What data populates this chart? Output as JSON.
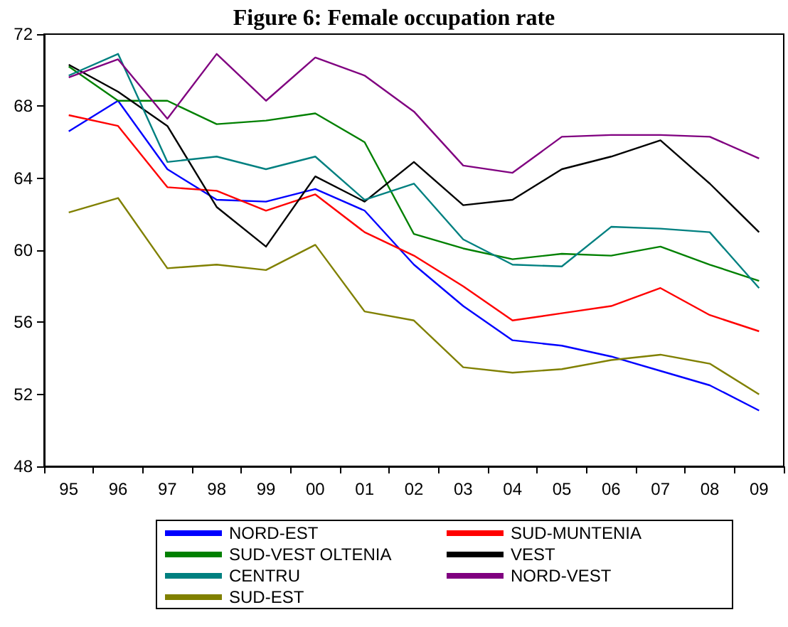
{
  "chart_data": {
    "type": "line",
    "title": "Figure 6: Female occupation rate",
    "categories": [
      "95",
      "96",
      "97",
      "98",
      "99",
      "00",
      "01",
      "02",
      "03",
      "04",
      "05",
      "06",
      "07",
      "08",
      "09"
    ],
    "series": [
      {
        "name": "NORD-EST",
        "color": "#0000ff",
        "values": [
          66.6,
          68.3,
          64.5,
          62.8,
          62.7,
          63.4,
          62.2,
          59.2,
          56.9,
          55.0,
          54.7,
          54.1,
          53.3,
          52.5,
          51.1
        ]
      },
      {
        "name": "SUD-MUNTENIA",
        "color": "#ff0000",
        "values": [
          67.5,
          66.9,
          63.5,
          63.3,
          62.2,
          63.1,
          61.0,
          59.7,
          58.0,
          56.1,
          56.5,
          56.9,
          57.9,
          56.4,
          55.5
        ]
      },
      {
        "name": "SUD-VEST OLTENIA",
        "color": "#008000",
        "values": [
          70.2,
          68.3,
          68.3,
          67.0,
          67.2,
          67.6,
          66.0,
          60.9,
          60.1,
          59.5,
          59.8,
          59.7,
          60.2,
          59.2,
          58.3
        ]
      },
      {
        "name": "VEST",
        "color": "#000000",
        "values": [
          70.3,
          68.8,
          66.9,
          62.4,
          60.2,
          64.1,
          62.7,
          64.9,
          62.5,
          62.8,
          64.5,
          65.2,
          66.1,
          63.7,
          61.0
        ]
      },
      {
        "name": "CENTRU",
        "color": "#008080",
        "values": [
          69.7,
          70.9,
          64.9,
          65.2,
          64.5,
          65.2,
          62.8,
          63.7,
          60.6,
          59.2,
          59.1,
          61.3,
          61.2,
          61.0,
          57.9
        ]
      },
      {
        "name": "NORD-VEST",
        "color": "#800080",
        "values": [
          69.6,
          70.6,
          67.3,
          70.9,
          68.3,
          70.7,
          69.7,
          67.7,
          64.7,
          64.3,
          66.3,
          66.4,
          66.4,
          66.3,
          65.1
        ]
      },
      {
        "name": "SUD-EST",
        "color": "#808000",
        "values": [
          62.1,
          62.9,
          59.0,
          59.2,
          58.9,
          60.3,
          56.6,
          56.1,
          53.5,
          53.2,
          53.4,
          53.9,
          54.2,
          53.7,
          52.0
        ]
      }
    ],
    "ylim": [
      48,
      72
    ],
    "yticks": [
      48,
      52,
      56,
      60,
      64,
      68,
      72
    ],
    "grid": false,
    "legend": "bottom",
    "marker": "none",
    "line_style": "solid"
  }
}
